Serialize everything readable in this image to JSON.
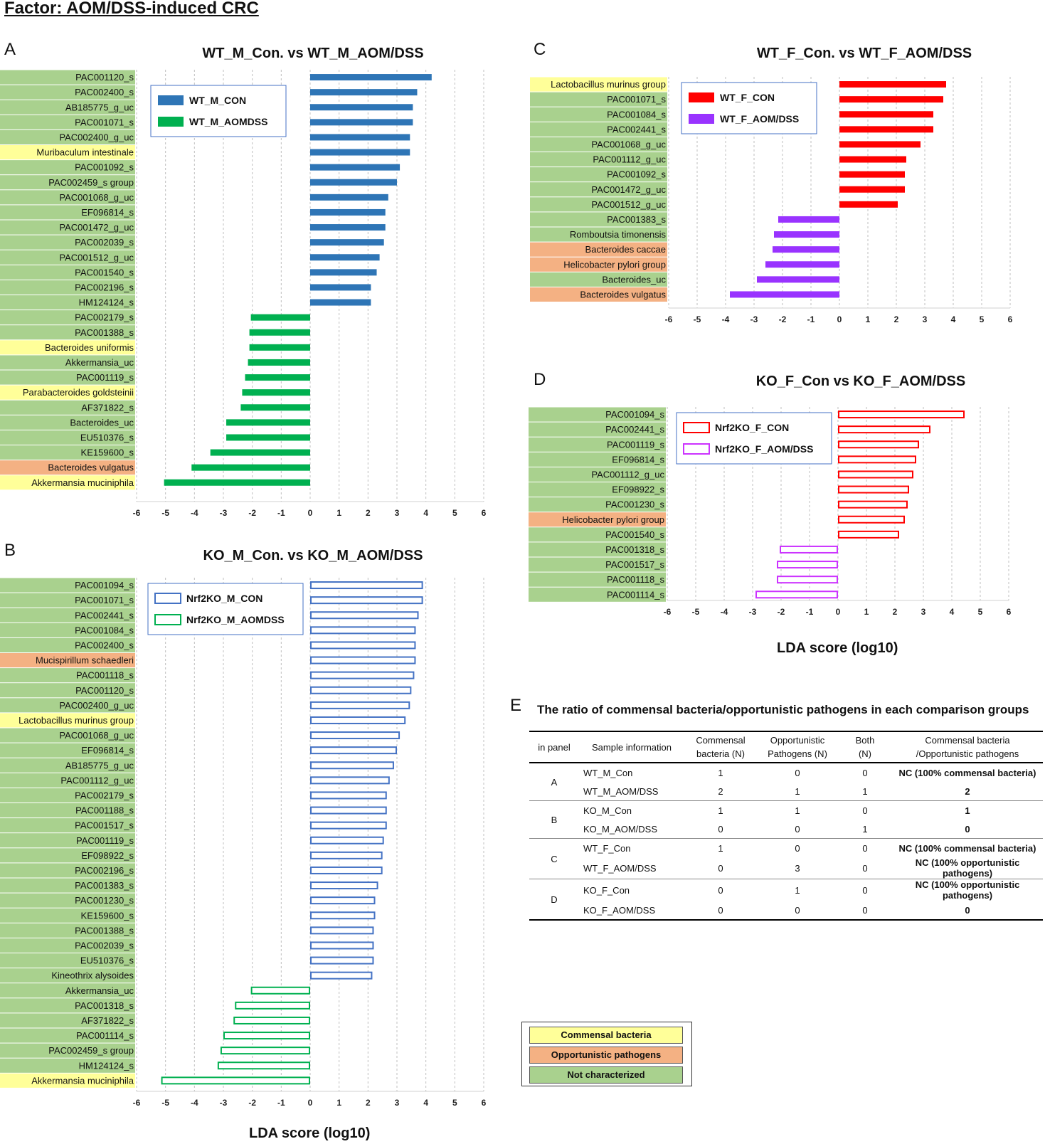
{
  "figure_title": "Factor: AOM/DSS-induced CRC",
  "colors": {
    "commensal": "#ffff99",
    "opportunistic": "#f4b183",
    "not_characterized": "#a9d18e",
    "blue": "#2e75b6",
    "green": "#00b050",
    "red": "#ff0000",
    "purple": "#9933ff",
    "outline_blue": "#4472c4",
    "outline_green": "#00b050",
    "outline_red": "#ff0000",
    "outline_purple": "#cc33ff"
  },
  "chart_data": [
    {
      "panel": "A",
      "type": "bar",
      "orientation": "horizontal",
      "title": "WT_M_Con. vs WT_M_AOM/DSS",
      "xlabel": "",
      "xlim": [
        -6,
        6
      ],
      "xticks": [
        "-6",
        "-5",
        "-4",
        "-3",
        "-2",
        "-1",
        "0",
        "1",
        "2",
        "3",
        "4",
        "5",
        "6"
      ],
      "fill_style": "solid",
      "series": [
        {
          "name": "WT_M_CON",
          "color": "#2e75b6"
        },
        {
          "name": "WT_M_AOMDSS",
          "color": "#00b050"
        }
      ],
      "legend_position": "top-left",
      "bars": [
        {
          "label": "PAC001120_s",
          "value": 4.2,
          "category": "nc"
        },
        {
          "label": "PAC002400_s",
          "value": 3.7,
          "category": "nc"
        },
        {
          "label": "AB185775_g_uc",
          "value": 3.55,
          "category": "nc"
        },
        {
          "label": "PAC001071_s",
          "value": 3.55,
          "category": "nc"
        },
        {
          "label": "PAC002400_g_uc",
          "value": 3.45,
          "category": "nc"
        },
        {
          "label": "Muribaculum intestinale",
          "value": 3.45,
          "category": "commensal"
        },
        {
          "label": "PAC001092_s",
          "value": 3.1,
          "category": "nc"
        },
        {
          "label": "PAC002459_s group",
          "value": 3.0,
          "category": "nc"
        },
        {
          "label": "PAC001068_g_uc",
          "value": 2.7,
          "category": "nc"
        },
        {
          "label": "EF096814_s",
          "value": 2.6,
          "category": "nc"
        },
        {
          "label": "PAC001472_g_uc",
          "value": 2.6,
          "category": "nc"
        },
        {
          "label": "PAC002039_s",
          "value": 2.55,
          "category": "nc"
        },
        {
          "label": "PAC001512_g_uc",
          "value": 2.4,
          "category": "nc"
        },
        {
          "label": "PAC001540_s",
          "value": 2.3,
          "category": "nc"
        },
        {
          "label": "PAC002196_s",
          "value": 2.1,
          "category": "nc"
        },
        {
          "label": "HM124124_s",
          "value": 2.1,
          "category": "nc"
        },
        {
          "label": "PAC002179_s",
          "value": -2.05,
          "category": "nc"
        },
        {
          "label": "PAC001388_s",
          "value": -2.1,
          "category": "nc"
        },
        {
          "label": "Bacteroides uniformis",
          "value": -2.1,
          "category": "commensal"
        },
        {
          "label": "Akkermansia_uc",
          "value": -2.15,
          "category": "nc"
        },
        {
          "label": "PAC001119_s",
          "value": -2.25,
          "category": "nc"
        },
        {
          "label": "Parabacteroides goldsteinii",
          "value": -2.35,
          "category": "commensal"
        },
        {
          "label": "AF371822_s",
          "value": -2.4,
          "category": "nc"
        },
        {
          "label": "Bacteroides_uc",
          "value": -2.9,
          "category": "nc"
        },
        {
          "label": "EU510376_s",
          "value": -2.9,
          "category": "nc"
        },
        {
          "label": "KE159600_s",
          "value": -3.45,
          "category": "nc"
        },
        {
          "label": "Bacteroides vulgatus",
          "value": -4.1,
          "category": "opportunistic"
        },
        {
          "label": "Akkermansia muciniphila",
          "value": -5.05,
          "category": "commensal"
        }
      ]
    },
    {
      "panel": "B",
      "type": "bar",
      "orientation": "horizontal",
      "title": "KO_M_Con. vs KO_M_AOM/DSS",
      "xlabel": "LDA score (log10)",
      "xlim": [
        -6,
        6
      ],
      "xticks": [
        "-6",
        "-5",
        "-4",
        "-3",
        "-2",
        "-1",
        "0",
        "1",
        "2",
        "3",
        "4",
        "5",
        "6"
      ],
      "fill_style": "outline",
      "series": [
        {
          "name": "Nrf2KO_M_CON",
          "color": "#4472c4"
        },
        {
          "name": "Nrf2KO_M_AOMDSS",
          "color": "#00b050"
        }
      ],
      "legend_position": "top-left",
      "bars": [
        {
          "label": "PAC001094_s",
          "value": 3.9,
          "category": "nc"
        },
        {
          "label": "PAC001071_s",
          "value": 3.9,
          "category": "nc"
        },
        {
          "label": "PAC002441_s",
          "value": 3.75,
          "category": "nc"
        },
        {
          "label": "PAC001084_s",
          "value": 3.65,
          "category": "nc"
        },
        {
          "label": "PAC002400_s",
          "value": 3.65,
          "category": "nc"
        },
        {
          "label": "Mucispirillum schaedleri",
          "value": 3.65,
          "category": "opportunistic"
        },
        {
          "label": "PAC001118_s",
          "value": 3.6,
          "category": "nc"
        },
        {
          "label": "PAC001120_s",
          "value": 3.5,
          "category": "nc"
        },
        {
          "label": "PAC002400_g_uc",
          "value": 3.45,
          "category": "nc"
        },
        {
          "label": "Lactobacillus murinus group",
          "value": 3.3,
          "category": "commensal"
        },
        {
          "label": "PAC001068_g_uc",
          "value": 3.1,
          "category": "nc"
        },
        {
          "label": "EF096814_s",
          "value": 3.0,
          "category": "nc"
        },
        {
          "label": "AB185775_g_uc",
          "value": 2.9,
          "category": "nc"
        },
        {
          "label": "PAC001112_g_uc",
          "value": 2.75,
          "category": "nc"
        },
        {
          "label": "PAC002179_s",
          "value": 2.65,
          "category": "nc"
        },
        {
          "label": "PAC001188_s",
          "value": 2.65,
          "category": "nc"
        },
        {
          "label": "PAC001517_s",
          "value": 2.65,
          "category": "nc"
        },
        {
          "label": "PAC001119_s",
          "value": 2.55,
          "category": "nc"
        },
        {
          "label": "EF098922_s",
          "value": 2.5,
          "category": "nc"
        },
        {
          "label": "PAC002196_s",
          "value": 2.5,
          "category": "nc"
        },
        {
          "label": "PAC001383_s",
          "value": 2.35,
          "category": "nc"
        },
        {
          "label": "PAC001230_s",
          "value": 2.25,
          "category": "nc"
        },
        {
          "label": "KE159600_s",
          "value": 2.25,
          "category": "nc"
        },
        {
          "label": "PAC001388_s",
          "value": 2.2,
          "category": "nc"
        },
        {
          "label": "PAC002039_s",
          "value": 2.2,
          "category": "nc"
        },
        {
          "label": "EU510376_s",
          "value": 2.2,
          "category": "nc"
        },
        {
          "label": "Kineothrix alysoides",
          "value": 2.15,
          "category": "nc"
        },
        {
          "label": "Akkermansia_uc",
          "value": -2.05,
          "category": "nc"
        },
        {
          "label": "PAC001318_s",
          "value": -2.6,
          "category": "nc"
        },
        {
          "label": "AF371822_s",
          "value": -2.65,
          "category": "nc"
        },
        {
          "label": "PAC001114_s",
          "value": -3.0,
          "category": "nc"
        },
        {
          "label": "PAC002459_s group",
          "value": -3.1,
          "category": "nc"
        },
        {
          "label": "HM124124_s",
          "value": -3.2,
          "category": "nc"
        },
        {
          "label": "Akkermansia muciniphila",
          "value": -5.15,
          "category": "commensal"
        }
      ]
    },
    {
      "panel": "C",
      "type": "bar",
      "orientation": "horizontal",
      "title": "WT_F_Con. vs WT_F_AOM/DSS",
      "xlabel": "",
      "xlim": [
        -6,
        6
      ],
      "xticks": [
        "-6",
        "-5",
        "-4",
        "-3",
        "-2",
        "-1",
        "0",
        "1",
        "2",
        "3",
        "4",
        "5",
        "6"
      ],
      "fill_style": "solid",
      "series": [
        {
          "name": "WT_F_CON",
          "color": "#ff0000"
        },
        {
          "name": "WT_F_AOM/DSS",
          "color": "#9933ff"
        }
      ],
      "legend_position": "top-left",
      "bars": [
        {
          "label": "Lactobacillus murinus group",
          "value": 3.75,
          "category": "commensal"
        },
        {
          "label": "PAC001071_s",
          "value": 3.65,
          "category": "nc"
        },
        {
          "label": "PAC001084_s",
          "value": 3.3,
          "category": "nc"
        },
        {
          "label": "PAC002441_s",
          "value": 3.3,
          "category": "nc"
        },
        {
          "label": "PAC001068_g_uc",
          "value": 2.85,
          "category": "nc"
        },
        {
          "label": "PAC001112_g_uc",
          "value": 2.35,
          "category": "nc"
        },
        {
          "label": "PAC001092_s",
          "value": 2.3,
          "category": "nc"
        },
        {
          "label": "PAC001472_g_uc",
          "value": 2.3,
          "category": "nc"
        },
        {
          "label": "PAC001512_g_uc",
          "value": 2.05,
          "category": "nc"
        },
        {
          "label": "PAC001383_s",
          "value": -2.15,
          "category": "nc"
        },
        {
          "label": "Romboutsia timonensis",
          "value": -2.3,
          "category": "nc"
        },
        {
          "label": "Bacteroides caccae",
          "value": -2.35,
          "category": "opportunistic"
        },
        {
          "label": "Helicobacter pylori group",
          "value": -2.6,
          "category": "opportunistic"
        },
        {
          "label": "Bacteroides_uc",
          "value": -2.9,
          "category": "nc"
        },
        {
          "label": "Bacteroides vulgatus",
          "value": -3.85,
          "category": "opportunistic"
        }
      ]
    },
    {
      "panel": "D",
      "type": "bar",
      "orientation": "horizontal",
      "title": "KO_F_Con vs KO_F_AOM/DSS",
      "xlabel": "LDA score (log10)",
      "xlim": [
        -6,
        6
      ],
      "xticks": [
        "-6",
        "-5",
        "-4",
        "-3",
        "-2",
        "-1",
        "0",
        "1",
        "2",
        "3",
        "4",
        "5",
        "6"
      ],
      "fill_style": "outline",
      "series": [
        {
          "name": "Nrf2KO_F_CON",
          "color": "#ff0000"
        },
        {
          "name": "Nrf2KO_F_AOM/DSS",
          "color": "#cc33ff"
        }
      ],
      "legend_position": "top-left",
      "bars": [
        {
          "label": "PAC001094_s",
          "value": 4.45,
          "category": "nc"
        },
        {
          "label": "PAC002441_s",
          "value": 3.25,
          "category": "nc"
        },
        {
          "label": "PAC001119_s",
          "value": 2.85,
          "category": "nc"
        },
        {
          "label": "EF096814_s",
          "value": 2.75,
          "category": "nc"
        },
        {
          "label": "PAC001112_g_uc",
          "value": 2.65,
          "category": "nc"
        },
        {
          "label": "EF098922_s",
          "value": 2.5,
          "category": "nc"
        },
        {
          "label": "PAC001230_s",
          "value": 2.45,
          "category": "nc"
        },
        {
          "label": "Helicobacter pylori group",
          "value": 2.35,
          "category": "opportunistic"
        },
        {
          "label": "PAC001540_s",
          "value": 2.15,
          "category": "nc"
        },
        {
          "label": "PAC001318_s",
          "value": -2.05,
          "category": "nc"
        },
        {
          "label": "PAC001517_s",
          "value": -2.15,
          "category": "nc"
        },
        {
          "label": "PAC001118_s",
          "value": -2.15,
          "category": "nc"
        },
        {
          "label": "PAC001114_s",
          "value": -2.9,
          "category": "nc"
        }
      ]
    }
  ],
  "table": {
    "letter": "E",
    "title": "The ratio of commensal bacteria/opportunistic pathogens in each comparison groups",
    "headers": {
      "panel": "in panel",
      "sample": "Sample information",
      "commensal_1": "Commensal",
      "commensal_2": "bacteria (N)",
      "opp_1": "Opportunistic",
      "opp_2": "Pathogens (N)",
      "both_1": "Both",
      "both_2": "(N)",
      "ratio_1": "Commensal bacteria",
      "ratio_2": "/Opportunistic pathogens"
    },
    "groups": [
      {
        "panel": "A",
        "rows": [
          {
            "sample": "WT_M_Con",
            "commensal": "1",
            "opportunistic": "0",
            "both": "0",
            "ratio": "NC (100% commensal bacteria)"
          },
          {
            "sample": "WT_M_AOM/DSS",
            "commensal": "2",
            "opportunistic": "1",
            "both": "1",
            "ratio": "2"
          }
        ]
      },
      {
        "panel": "B",
        "rows": [
          {
            "sample": "KO_M_Con",
            "commensal": "1",
            "opportunistic": "1",
            "both": "0",
            "ratio": "1"
          },
          {
            "sample": "KO_M_AOM/DSS",
            "commensal": "0",
            "opportunistic": "0",
            "both": "1",
            "ratio": "0"
          }
        ]
      },
      {
        "panel": "C",
        "rows": [
          {
            "sample": "WT_F_Con",
            "commensal": "1",
            "opportunistic": "0",
            "both": "0",
            "ratio": "NC (100% commensal bacteria)"
          },
          {
            "sample": "WT_F_AOM/DSS",
            "commensal": "0",
            "opportunistic": "3",
            "both": "0",
            "ratio": "NC (100% opportunistic pathogens)"
          }
        ]
      },
      {
        "panel": "D",
        "rows": [
          {
            "sample": "KO_F_Con",
            "commensal": "0",
            "opportunistic": "1",
            "both": "0",
            "ratio": "NC (100% opportunistic pathogens)"
          },
          {
            "sample": "KO_F_AOM/DSS",
            "commensal": "0",
            "opportunistic": "0",
            "both": "0",
            "ratio": "0"
          }
        ]
      }
    ]
  },
  "category_legend": {
    "commensal": "Commensal bacteria",
    "opportunistic": "Opportunistic pathogens",
    "not_characterized": "Not characterized"
  }
}
